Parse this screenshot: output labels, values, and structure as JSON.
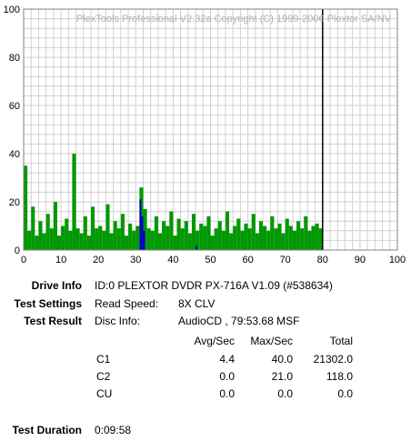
{
  "chart_data": {
    "type": "bar",
    "title": "PlexTools Professional V2.32a Copyright (C) 1999-2006 Plextor SA/NV",
    "xlim": [
      0,
      100
    ],
    "ylim": [
      0,
      100
    ],
    "xticks": [
      0,
      10,
      20,
      30,
      40,
      50,
      60,
      70,
      80,
      90,
      100
    ],
    "yticks": [
      0,
      20,
      40,
      60,
      80,
      100
    ],
    "grid": true,
    "end_marker_x": 80,
    "series": [
      {
        "name": "C1",
        "color": "#009900",
        "x": [
          0,
          1,
          2,
          3,
          4,
          5,
          6,
          7,
          8,
          9,
          10,
          11,
          12,
          13,
          14,
          15,
          16,
          17,
          18,
          19,
          20,
          21,
          22,
          23,
          24,
          25,
          26,
          27,
          28,
          29,
          30,
          31,
          32,
          33,
          34,
          35,
          36,
          37,
          38,
          39,
          40,
          41,
          42,
          43,
          44,
          45,
          46,
          47,
          48,
          49,
          50,
          51,
          52,
          53,
          54,
          55,
          56,
          57,
          58,
          59,
          60,
          61,
          62,
          63,
          64,
          65,
          66,
          67,
          68,
          69,
          70,
          71,
          72,
          73,
          74,
          75,
          76,
          77,
          78,
          79
        ],
        "values": [
          35,
          8,
          18,
          6,
          12,
          7,
          15,
          9,
          20,
          6,
          10,
          13,
          8,
          40,
          9,
          7,
          14,
          6,
          18,
          9,
          10,
          8,
          19,
          7,
          12,
          9,
          15,
          6,
          11,
          8,
          10,
          26,
          17,
          9,
          8,
          14,
          7,
          12,
          10,
          16,
          6,
          13,
          9,
          12,
          7,
          15,
          8,
          11,
          10,
          14,
          6,
          9,
          12,
          8,
          16,
          7,
          10,
          13,
          8,
          11,
          9,
          15,
          7,
          12,
          10,
          8,
          14,
          9,
          11,
          7,
          13,
          10,
          8,
          12,
          9,
          14,
          8,
          10,
          11,
          9
        ]
      },
      {
        "name": "C2",
        "color": "#0000cc",
        "x": [
          31,
          31.5,
          32,
          46
        ],
        "values": [
          21,
          14,
          8,
          2
        ]
      }
    ]
  },
  "info": {
    "drive_label": "Drive Info",
    "drive_value": "ID:0 PLEXTOR DVDR PX-716A V1.09 (#538634)",
    "settings_label": "Test Settings",
    "read_speed_label": "Read Speed:",
    "read_speed_value": "8X CLV",
    "result_label": "Test Result",
    "disc_info_label": "Disc Info:",
    "disc_info_value": "AudioCD , 79:53.68 MSF",
    "duration_label": "Test Duration",
    "duration_value": "0:09:58"
  },
  "stats": {
    "headers": [
      "Avg/Sec",
      "Max/Sec",
      "Total"
    ],
    "rows": [
      {
        "name": "C1",
        "avg": "4.4",
        "max": "40.0",
        "total": "21302.0"
      },
      {
        "name": "C2",
        "avg": "0.0",
        "max": "21.0",
        "total": "118.0"
      },
      {
        "name": "CU",
        "avg": "0.0",
        "max": "0.0",
        "total": "0.0"
      }
    ]
  }
}
